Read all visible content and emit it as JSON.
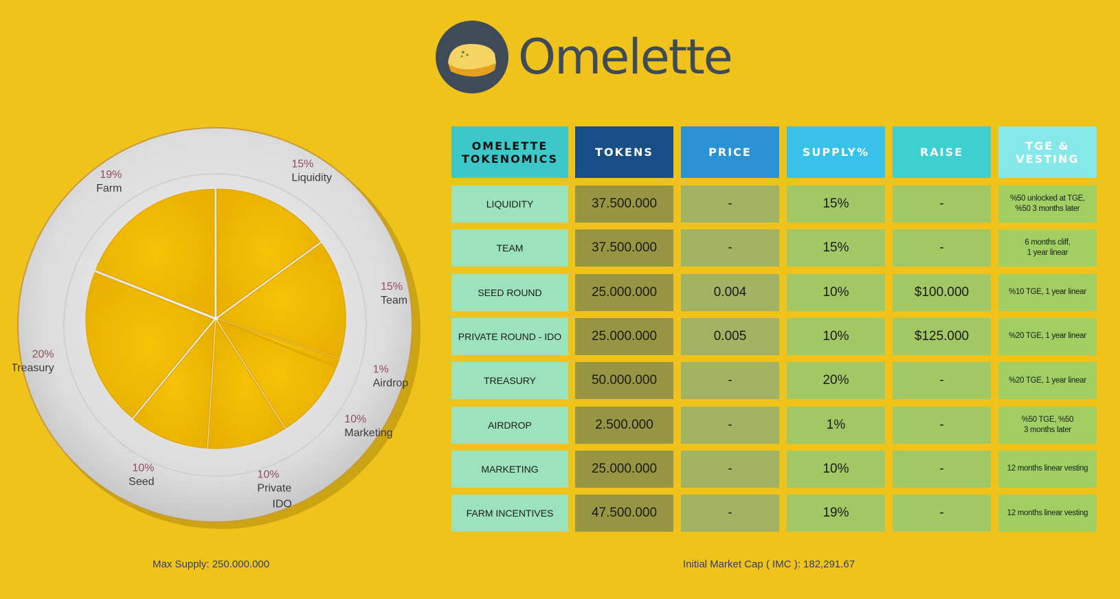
{
  "brand": {
    "name": "Omelette"
  },
  "chart_data": {
    "type": "pie",
    "labels": [
      "Farm",
      "Liquidity",
      "Team",
      "Airdrop",
      "Marketing",
      "Private IDO",
      "Seed",
      "Treasury"
    ],
    "values": [
      19,
      15,
      15,
      1,
      10,
      10,
      10,
      20
    ],
    "unit": "%",
    "display": [
      {
        "name": "Farm",
        "pct": "19%"
      },
      {
        "name": "Liquidity",
        "pct": "15%"
      },
      {
        "name": "Team",
        "pct": "15%"
      },
      {
        "name": "Airdrop",
        "pct": "1%"
      },
      {
        "name": "Marketing",
        "pct": "10%"
      },
      {
        "name": "Private",
        "name2": "IDO",
        "pct": "10%"
      },
      {
        "name": "Seed",
        "pct": "10%"
      },
      {
        "name": "Treasury",
        "pct": "20%"
      }
    ]
  },
  "table": {
    "headers": [
      {
        "lines": [
          "OMELETTE",
          "TOKENOMICS"
        ]
      },
      {
        "lines": [
          "TOKENS"
        ]
      },
      {
        "lines": [
          "PRICE"
        ]
      },
      {
        "lines": [
          "SUPPLY%"
        ]
      },
      {
        "lines": [
          "RAISE"
        ]
      },
      {
        "lines": [
          "TGE &",
          "VESTING"
        ]
      }
    ],
    "rows": [
      {
        "name": "LIQUIDITY",
        "tokens": "37.500.000",
        "price": "-",
        "supply": "15%",
        "raise": "-",
        "vesting": [
          "%50 unlocked at TGE,",
          "%50 3 months later"
        ]
      },
      {
        "name": "TEAM",
        "tokens": "37.500.000",
        "price": "-",
        "supply": "15%",
        "raise": "-",
        "vesting": [
          "6 months cliff,",
          "1 year linear"
        ]
      },
      {
        "name": "SEED ROUND",
        "tokens": "25.000.000",
        "price": "0.004",
        "supply": "10%",
        "raise": "$100.000",
        "vesting": [
          "%10 TGE, 1 year linear"
        ]
      },
      {
        "name": "PRIVATE ROUND - IDO",
        "tokens": "25.000.000",
        "price": "0.005",
        "supply": "10%",
        "raise": "$125.000",
        "vesting": [
          "%20 TGE, 1 year linear"
        ]
      },
      {
        "name": "TREASURY",
        "tokens": "50.000.000",
        "price": "-",
        "supply": "20%",
        "raise": "-",
        "vesting": [
          "%20 TGE, 1 year linear"
        ]
      },
      {
        "name": "AIRDROP",
        "tokens": "2.500.000",
        "price": "-",
        "supply": "1%",
        "raise": "-",
        "vesting": [
          "%50 TGE, %50",
          "3 months later"
        ]
      },
      {
        "name": "MARKETING",
        "tokens": "25.000.000",
        "price": "-",
        "supply": "10%",
        "raise": "-",
        "vesting": [
          "12 months linear vesting"
        ]
      },
      {
        "name": "FARM INCENTIVES",
        "tokens": "47.500.000",
        "price": "-",
        "supply": "19%",
        "raise": "-",
        "vesting": [
          "12 months linear vesting"
        ]
      }
    ]
  },
  "footer": {
    "max_supply": "Max Supply: 250.000.000",
    "imc": "Initial Market Cap ( IMC ):  182,291.67"
  },
  "colors": {
    "background": "#efc31b",
    "header": [
      "#3cc7c9",
      "#164e85",
      "#2b92d6",
      "#39c2e9",
      "#3cd0d0",
      "#86e8e8"
    ],
    "header_text": [
      "#111111",
      "#ffffff",
      "#ffffff",
      "#ffffff",
      "#ffffff",
      "#ffffff"
    ],
    "cells": [
      "#9ce2bd",
      "#979643",
      "#a1b362",
      "#a1c864",
      "#a1c864",
      "#a1cf64"
    ]
  }
}
